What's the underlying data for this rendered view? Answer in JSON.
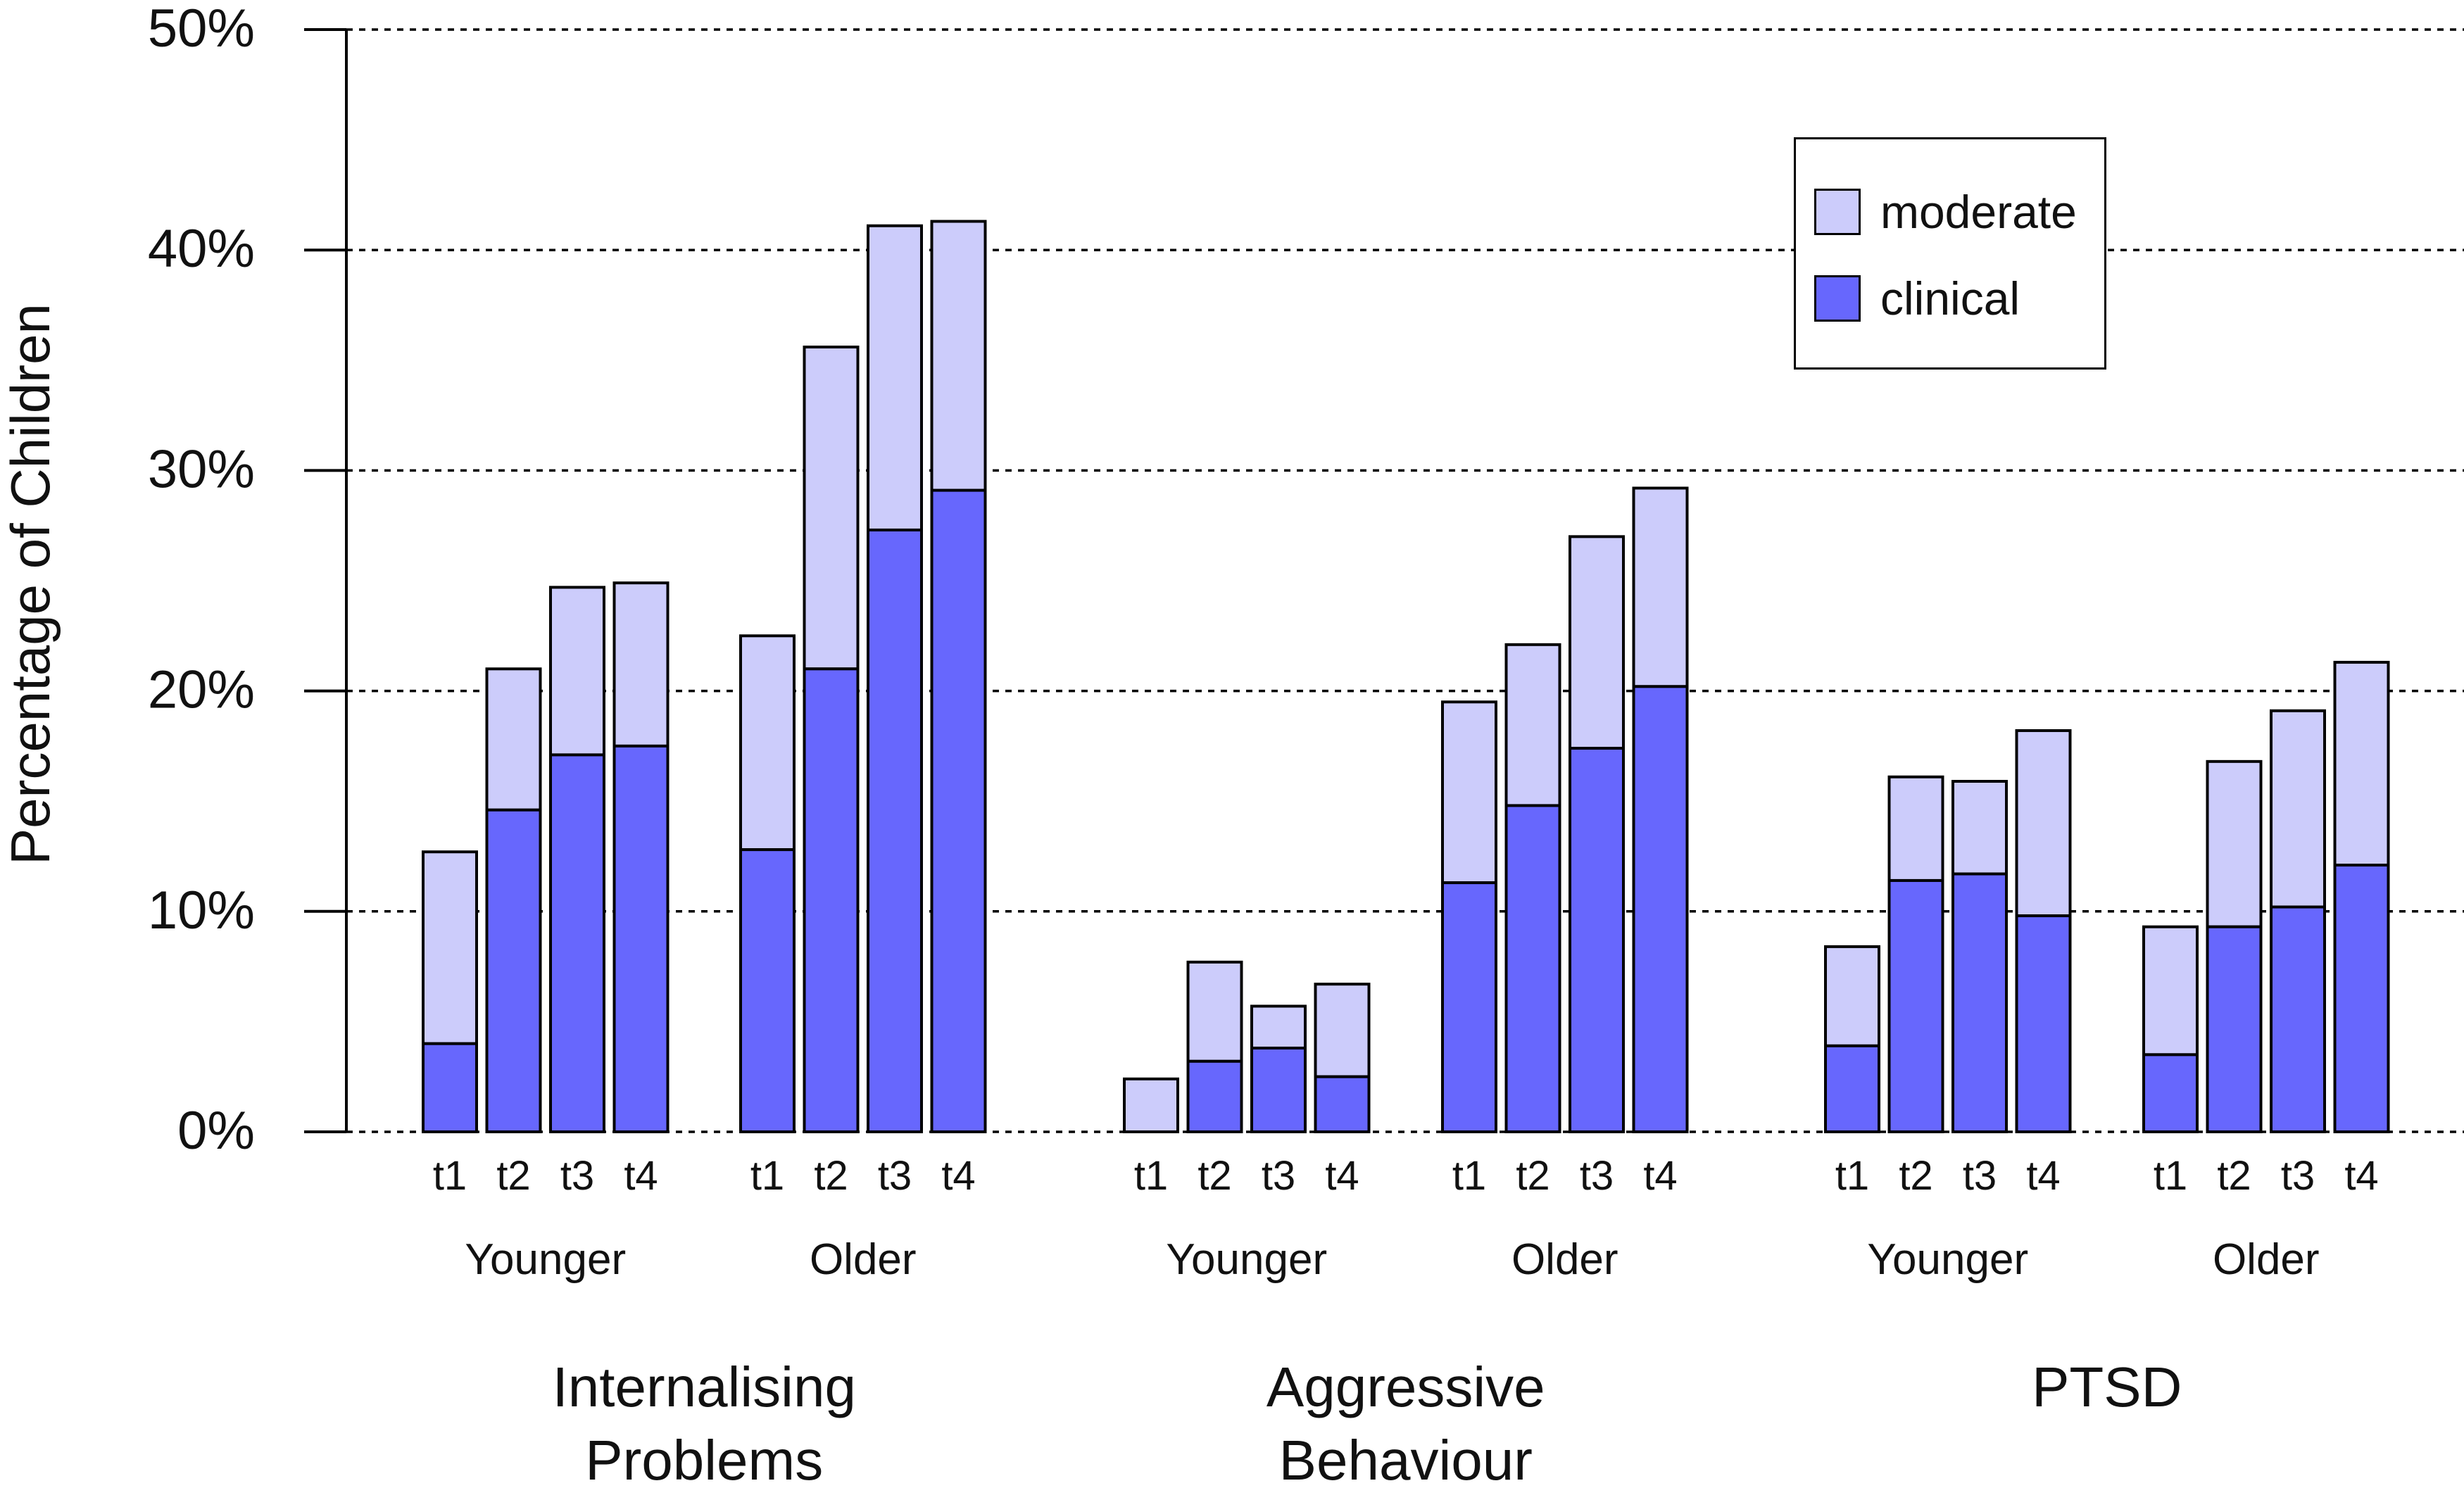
{
  "chart_data": {
    "type": "bar",
    "stacked": true,
    "ylabel": "Percentage of Children",
    "ylim": [
      0,
      50
    ],
    "yticks": [
      "0%",
      "10%",
      "20%",
      "30%",
      "40%",
      "50%"
    ],
    "grid": "dashed horizontal",
    "legend": {
      "position": "top-right",
      "entries": [
        {
          "name": "moderate",
          "color": "#ccccfb"
        },
        {
          "name": "clinical",
          "color": "#6767fd"
        }
      ]
    },
    "groups": [
      {
        "label": "Internalising Problems",
        "label_lines": [
          "Internalising",
          "Problems"
        ],
        "subgroups": [
          {
            "label": "Younger",
            "timepoints": [
              "t1",
              "t2",
              "t3",
              "t4"
            ],
            "clinical": [
              4.0,
              14.6,
              17.1,
              17.5
            ],
            "total": [
              12.7,
              21.0,
              24.7,
              24.9
            ]
          },
          {
            "label": "Older",
            "timepoints": [
              "t1",
              "t2",
              "t3",
              "t4"
            ],
            "clinical": [
              12.8,
              21.0,
              27.3,
              29.1
            ],
            "total": [
              22.5,
              35.6,
              41.1,
              41.3
            ]
          }
        ]
      },
      {
        "label": "Aggressive Behaviour",
        "label_lines": [
          "Aggressive",
          "Behaviour"
        ],
        "subgroups": [
          {
            "label": "Younger",
            "timepoints": [
              "t1",
              "t2",
              "t3",
              "t4"
            ],
            "clinical": [
              0.0,
              3.2,
              3.8,
              2.5
            ],
            "total": [
              2.4,
              7.7,
              5.7,
              6.7
            ]
          },
          {
            "label": "Older",
            "timepoints": [
              "t1",
              "t2",
              "t3",
              "t4"
            ],
            "clinical": [
              11.3,
              14.8,
              17.4,
              20.2
            ],
            "total": [
              19.5,
              22.1,
              27.0,
              29.2
            ]
          }
        ]
      },
      {
        "label": "PTSD",
        "label_lines": [
          "PTSD"
        ],
        "subgroups": [
          {
            "label": "Younger",
            "timepoints": [
              "t1",
              "t2",
              "t3",
              "t4"
            ],
            "clinical": [
              3.9,
              11.4,
              11.7,
              9.8
            ],
            "total": [
              8.4,
              16.1,
              15.9,
              18.2
            ]
          },
          {
            "label": "Older",
            "timepoints": [
              "t1",
              "t2",
              "t3",
              "t4"
            ],
            "clinical": [
              3.5,
              9.3,
              10.2,
              12.1
            ],
            "total": [
              9.3,
              16.8,
              19.1,
              21.3
            ]
          }
        ]
      }
    ]
  }
}
